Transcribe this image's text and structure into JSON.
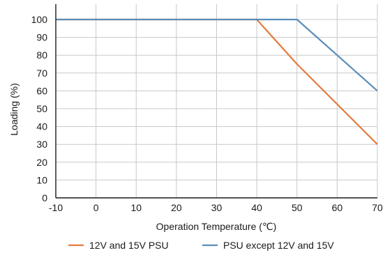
{
  "chart_data": {
    "type": "line",
    "xlabel": "Operation Temperature (℃)",
    "ylabel": "Loading (%)",
    "xlim": [
      -10,
      70
    ],
    "ylim": [
      0,
      100
    ],
    "x_ticks": [
      -10,
      0,
      10,
      20,
      30,
      40,
      50,
      60,
      70
    ],
    "y_ticks": [
      0,
      10,
      20,
      30,
      40,
      50,
      60,
      70,
      80,
      90,
      100
    ],
    "grid": true,
    "legend_position": "bottom",
    "series": [
      {
        "name": "12V and 15V PSU",
        "color": "#e47b3f",
        "points": [
          [
            -10,
            100
          ],
          [
            40,
            100
          ],
          [
            50,
            75
          ],
          [
            70,
            30
          ]
        ]
      },
      {
        "name": "PSU except 12V and 15V",
        "color": "#5b8db8",
        "points": [
          [
            -10,
            100
          ],
          [
            50,
            100
          ],
          [
            70,
            60
          ]
        ]
      }
    ]
  }
}
